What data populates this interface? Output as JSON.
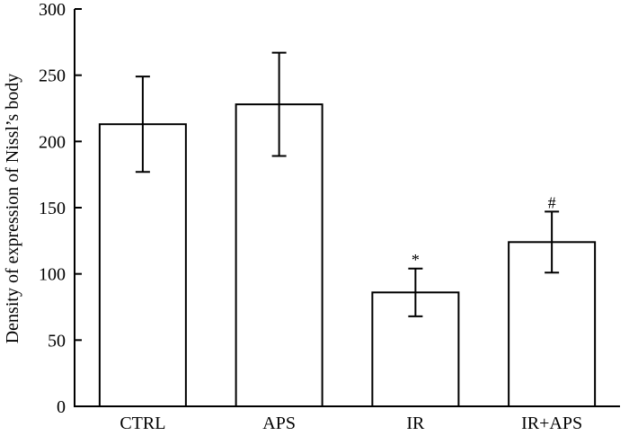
{
  "chart_data": {
    "type": "bar",
    "categories": [
      "CTRL",
      "APS",
      "IR",
      "IR+APS"
    ],
    "values": [
      213,
      228,
      86,
      124
    ],
    "errors": [
      36,
      39,
      18,
      23
    ],
    "annotations": [
      "",
      "",
      "*",
      "#"
    ],
    "ylabel": "Density of expression of Nissl’s body",
    "xlabel": "",
    "ylim": [
      0,
      300
    ],
    "yticks": [
      0,
      50,
      100,
      150,
      200,
      250,
      300
    ],
    "grid": false,
    "bar_fill": "#ffffff",
    "bar_stroke": "#000000"
  }
}
